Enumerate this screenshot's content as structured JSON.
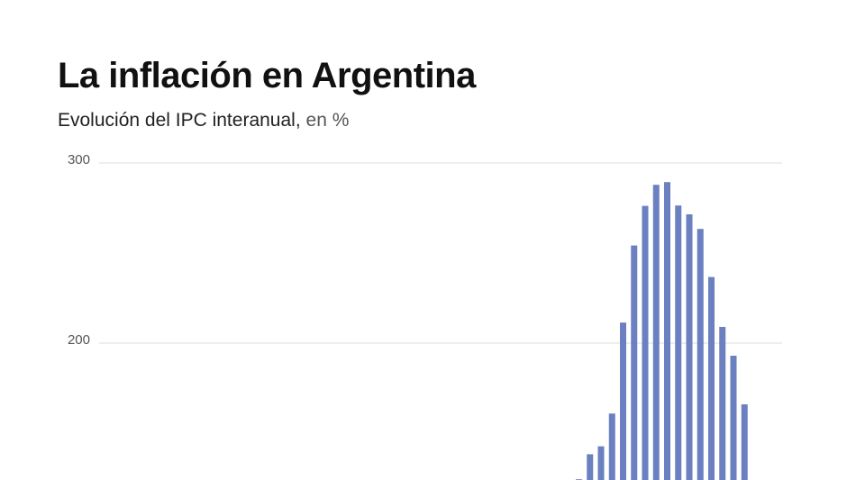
{
  "chart_data": {
    "type": "bar",
    "title": "La inflación en Argentina",
    "subtitle": "Evolución del IPC interanual,",
    "subtitle_unit": "en %",
    "xlabel": "",
    "ylabel": "",
    "yticks": [
      200,
      300
    ],
    "ylim_visible": [
      125,
      300
    ],
    "grid": true,
    "bar_color": "#6a80c0",
    "values": [
      124.4,
      138.3,
      142.7,
      160.9,
      211.4,
      254.2,
      276.2,
      287.9,
      289.4,
      276.4,
      271.5,
      263.4,
      236.7,
      209.0,
      193.0,
      166.0
    ]
  }
}
